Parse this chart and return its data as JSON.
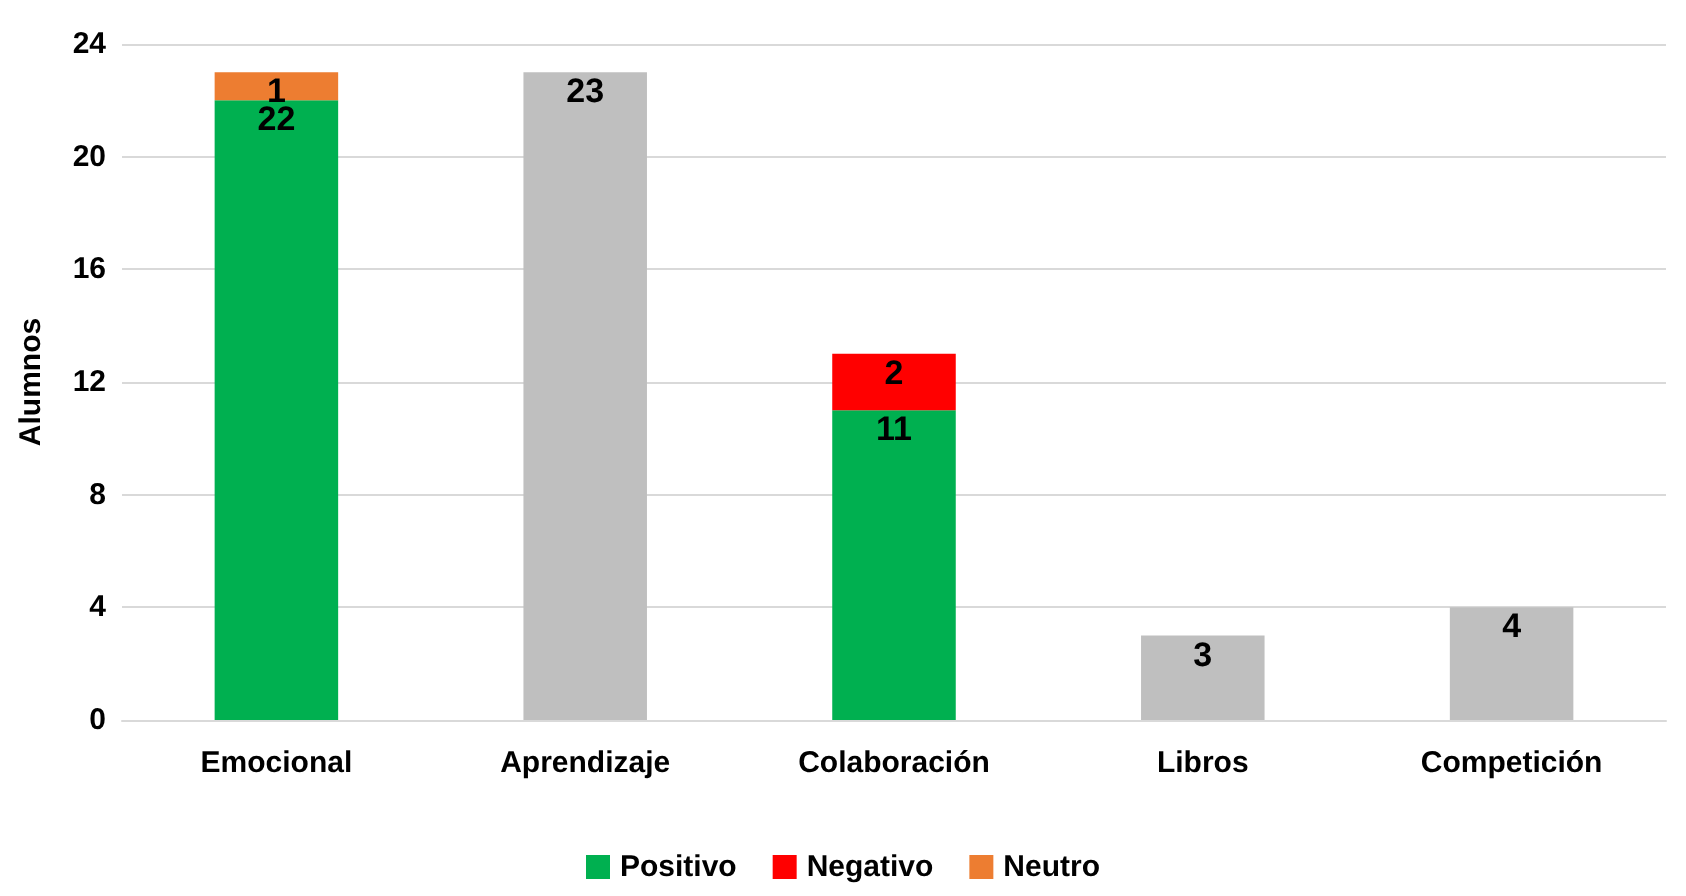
{
  "chart_data": {
    "type": "bar",
    "ylabel": "Alumnos",
    "categories": [
      "Emocional",
      "Aprendizaje",
      "Colaboración",
      "Libros",
      "Competición"
    ],
    "series": [
      {
        "name": "Positivo",
        "color": "#00b050",
        "values": [
          22,
          null,
          11,
          null,
          null
        ]
      },
      {
        "name": "Negativo",
        "color": "#ff0000",
        "values": [
          null,
          null,
          2,
          null,
          null
        ]
      },
      {
        "name": "Neutro",
        "color": "#ed7d31",
        "values": [
          1,
          null,
          null,
          null,
          null
        ]
      },
      {
        "color": "#bfbfbf",
        "values": [
          null,
          23,
          null,
          3,
          4
        ]
      }
    ],
    "stacked": true,
    "data_labels": true,
    "ylim": [
      0,
      24
    ],
    "yticks": [
      0,
      4,
      8,
      12,
      16,
      20,
      24
    ],
    "grid": "y",
    "legend": "bottom"
  }
}
